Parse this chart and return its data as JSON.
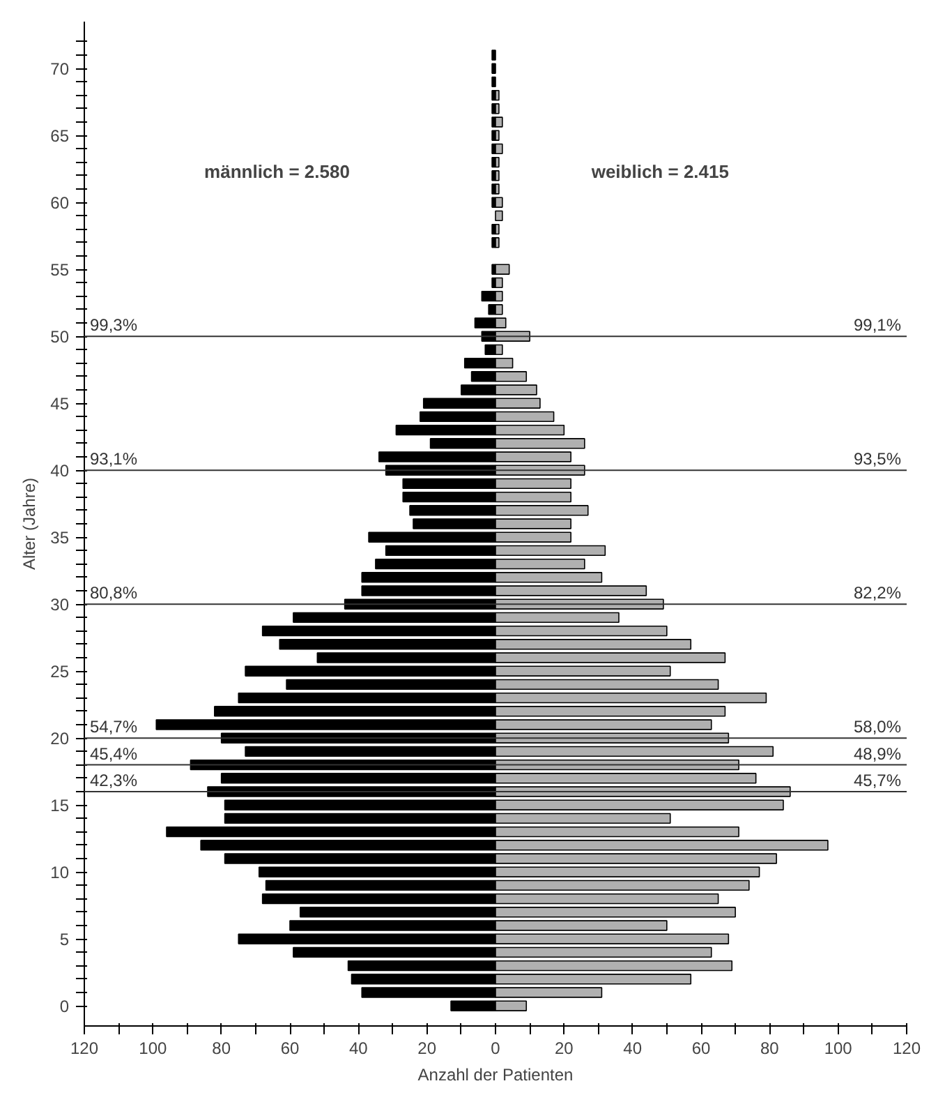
{
  "chart_data": {
    "type": "bar",
    "orientation": "horizontal",
    "xlabel": "Anzahl der Patienten",
    "ylabel": "Alter (Jahre)",
    "x": [
      0,
      1,
      2,
      3,
      4,
      5,
      6,
      7,
      8,
      9,
      10,
      11,
      12,
      13,
      14,
      15,
      16,
      17,
      18,
      19,
      20,
      21,
      22,
      23,
      24,
      25,
      26,
      27,
      28,
      29,
      30,
      31,
      32,
      33,
      34,
      35,
      36,
      37,
      38,
      39,
      40,
      41,
      42,
      43,
      44,
      45,
      46,
      47,
      48,
      49,
      50,
      51,
      52,
      53,
      54,
      55,
      56,
      57,
      58,
      59,
      60,
      61,
      62,
      63,
      64,
      65,
      66,
      67,
      68,
      69,
      70,
      71
    ],
    "series": [
      {
        "color": "#000000",
        "values": [
          -13,
          -39,
          -42,
          -43,
          -59,
          -75,
          -60,
          -57,
          -68,
          -67,
          -69,
          -79,
          -86,
          -96,
          -79,
          -79,
          -84,
          -80,
          -89,
          -73,
          -80,
          -99,
          -82,
          -75,
          -61,
          -73,
          -52,
          -63,
          -68,
          -59,
          -44,
          -39,
          -39,
          -35,
          -32,
          -37,
          -24,
          -25,
          -27,
          -27,
          -32,
          -34,
          -19,
          -29,
          -22,
          -21,
          -10,
          -7,
          -9,
          -3,
          -4,
          -6,
          -2,
          -4,
          -1,
          -1,
          0,
          -1,
          -1,
          0,
          -1,
          -1,
          -1,
          -1,
          -1,
          -1,
          -1,
          -1,
          -1,
          -1,
          -1,
          -1
        ]
      },
      {
        "color": "#b0b0b0",
        "values": [
          9,
          31,
          57,
          69,
          63,
          68,
          50,
          70,
          65,
          74,
          77,
          82,
          97,
          71,
          51,
          84,
          86,
          76,
          71,
          81,
          68,
          63,
          67,
          79,
          65,
          51,
          67,
          57,
          50,
          36,
          49,
          44,
          31,
          26,
          32,
          22,
          22,
          27,
          22,
          22,
          26,
          22,
          26,
          20,
          17,
          13,
          12,
          9,
          5,
          2,
          10,
          3,
          2,
          2,
          2,
          4,
          0,
          1,
          1,
          2,
          2,
          1,
          1,
          1,
          2,
          1,
          2,
          1,
          1,
          0,
          0,
          0
        ]
      }
    ],
    "xlim": [
      -120,
      120
    ],
    "xticks": [
      {
        "value": -120,
        "label": "120"
      },
      {
        "value": -110,
        "label": null
      },
      {
        "value": -100,
        "label": "100"
      },
      {
        "value": -90,
        "label": null
      },
      {
        "value": -80,
        "label": "80"
      },
      {
        "value": -70,
        "label": null
      },
      {
        "value": -60,
        "label": "60"
      },
      {
        "value": -50,
        "label": null
      },
      {
        "value": -40,
        "label": "40"
      },
      {
        "value": -30,
        "label": null
      },
      {
        "value": -20,
        "label": "20"
      },
      {
        "value": -10,
        "label": null
      },
      0,
      {
        "value": 10,
        "label": null
      },
      20,
      {
        "value": 30,
        "label": null
      },
      40,
      {
        "value": 50,
        "label": null
      },
      60,
      {
        "value": 70,
        "label": null
      },
      80,
      {
        "value": 90,
        "label": null
      },
      100,
      {
        "value": 110,
        "label": null
      },
      120
    ],
    "ylim": [
      -1.5,
      73.5
    ],
    "yticks": [
      0,
      {
        "value": 1,
        "label": null
      },
      {
        "value": 2,
        "label": null
      },
      {
        "value": 3,
        "label": null
      },
      {
        "value": 4,
        "label": null
      },
      5,
      {
        "value": 6,
        "label": null
      },
      {
        "value": 7,
        "label": null
      },
      {
        "value": 8,
        "label": null
      },
      {
        "value": 9,
        "label": null
      },
      10,
      {
        "value": 11,
        "label": null
      },
      {
        "value": 12,
        "label": null
      },
      {
        "value": 13,
        "label": null
      },
      {
        "value": 14,
        "label": null
      },
      15,
      {
        "value": 16,
        "label": null
      },
      {
        "value": 17,
        "label": null
      },
      {
        "value": 18,
        "label": null
      },
      {
        "value": 19,
        "label": null
      },
      20,
      {
        "value": 21,
        "label": null
      },
      {
        "value": 22,
        "label": null
      },
      {
        "value": 23,
        "label": null
      },
      {
        "value": 24,
        "label": null
      },
      25,
      {
        "value": 26,
        "label": null
      },
      {
        "value": 27,
        "label": null
      },
      {
        "value": 28,
        "label": null
      },
      {
        "value": 29,
        "label": null
      },
      30,
      {
        "value": 31,
        "label": null
      },
      {
        "value": 32,
        "label": null
      },
      {
        "value": 33,
        "label": null
      },
      {
        "value": 34,
        "label": null
      },
      35,
      {
        "value": 36,
        "label": null
      },
      {
        "value": 37,
        "label": null
      },
      {
        "value": 38,
        "label": null
      },
      {
        "value": 39,
        "label": null
      },
      40,
      {
        "value": 41,
        "label": null
      },
      {
        "value": 42,
        "label": null
      },
      {
        "value": 43,
        "label": null
      },
      {
        "value": 44,
        "label": null
      },
      45,
      {
        "value": 46,
        "label": null
      },
      {
        "value": 47,
        "label": null
      },
      {
        "value": 48,
        "label": null
      },
      {
        "value": 49,
        "label": null
      },
      50,
      {
        "value": 51,
        "label": null
      },
      {
        "value": 52,
        "label": null
      },
      {
        "value": 53,
        "label": null
      },
      {
        "value": 54,
        "label": null
      },
      55,
      {
        "value": 56,
        "label": null
      },
      {
        "value": 57,
        "label": null
      },
      {
        "value": 58,
        "label": null
      },
      {
        "value": 59,
        "label": null
      },
      60,
      {
        "value": 61,
        "label": null
      },
      {
        "value": 62,
        "label": null
      },
      {
        "value": 63,
        "label": null
      },
      {
        "value": 64,
        "label": null
      },
      65,
      {
        "value": 66,
        "label": null
      },
      {
        "value": 67,
        "label": null
      },
      {
        "value": 68,
        "label": null
      },
      {
        "value": 69,
        "label": null
      },
      70,
      {
        "value": 71,
        "label": null
      },
      {
        "value": 72,
        "label": null
      }
    ],
    "ref_lines": [
      {
        "axis": "y",
        "value": 50
      },
      {
        "axis": "y",
        "value": 40
      },
      {
        "axis": "y",
        "value": 30
      },
      {
        "axis": "y",
        "value": 20
      },
      {
        "axis": "y",
        "value": 18
      },
      {
        "axis": "y",
        "value": 16
      }
    ],
    "stacked": true,
    "annotations": [
      "männlich = 2.580",
      "weiblich = 2.415",
      {
        "text": "99,3%",
        "y": 50
      },
      {
        "text": "93,1%",
        "y": 40
      },
      {
        "text": "80,8%",
        "y": 30
      },
      {
        "text": "54,7%",
        "y": 20
      },
      {
        "text": "45,4%",
        "y": 18
      },
      {
        "text": "42,3%",
        "y": 16
      },
      {
        "text": "99,1%",
        "y": 50
      },
      {
        "text": "93,5%",
        "y": 40
      },
      {
        "text": "82,2%",
        "y": 30
      },
      {
        "text": "58,0%",
        "y": 20
      },
      {
        "text": "48,9%",
        "y": 18
      },
      {
        "text": "45,7%",
        "y": 16
      }
    ],
    "grid": false
  }
}
